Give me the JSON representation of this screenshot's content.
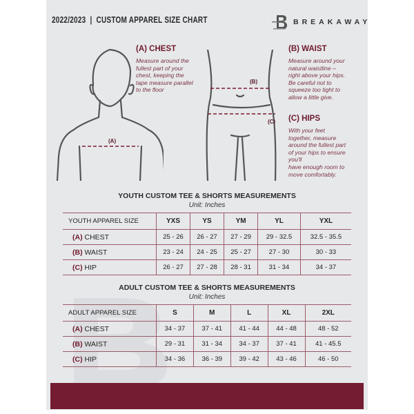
{
  "header": {
    "title": "2022/2023  |  CUSTOM APPAREL SIZE CHART",
    "brand": "BREAKAWAY",
    "logo_letter": "B"
  },
  "measure": {
    "chest": {
      "heading": "(A) CHEST",
      "lines": [
        "Measure around the",
        "fullest part of your",
        "chest, keeping the",
        "tape measure parallel",
        "to the floor"
      ],
      "tag": "(A)"
    },
    "waist": {
      "heading": "(B) WAIST",
      "lines": [
        "Measure around your",
        "natural waistline –",
        "right above your hips.",
        "Be careful not to",
        "squeeze too tight to",
        "allow a little give."
      ],
      "tag": "(B)"
    },
    "hips": {
      "heading": "(C) HIPS",
      "lines": [
        "With your feet",
        "together, measure",
        "around the fullest part",
        "of your hips to ensure",
        "you'll",
        "have enough room to",
        "move comfortably."
      ],
      "tag": "(C)"
    }
  },
  "youth": {
    "title": "YOUTH CUSTOM TEE & SHORTS MEASUREMENTS",
    "unit": "Unit: Inches",
    "header": [
      "YOUTH APPAREL SIZE",
      "YXS",
      "YS",
      "YM",
      "YL",
      "YXL"
    ],
    "rows": [
      {
        "letter": "(A)",
        "label": "CHEST",
        "values": [
          "25 - 26",
          "26 - 27",
          "27 - 29",
          "29 - 32.5",
          "32.5 - 35.5"
        ]
      },
      {
        "letter": "(B)",
        "label": "WAIST",
        "values": [
          "23 - 24",
          "24 - 25",
          "25 - 27",
          "27 - 30",
          "30 - 33"
        ]
      },
      {
        "letter": "(C)",
        "label": "HIP",
        "values": [
          "26 - 27",
          "27 - 28",
          "28 - 31",
          "31 - 34",
          "34 - 37"
        ]
      }
    ]
  },
  "adult": {
    "title": "ADULT CUSTOM TEE & SHORTS MEASUREMENTS",
    "unit": "Unit: Inches",
    "header": [
      "ADULT APPAREL SIZE",
      "S",
      "M",
      "L",
      "XL",
      "2XL"
    ],
    "rows": [
      {
        "letter": "(A)",
        "label": "CHEST",
        "values": [
          "34 - 37",
          "37 - 41",
          "41 - 44",
          "44 - 48",
          "48 - 52"
        ]
      },
      {
        "letter": "(B)",
        "label": "WAIST",
        "values": [
          "29 - 31",
          "31 - 34",
          "34 - 37",
          "37 - 41",
          "41 - 45.5"
        ]
      },
      {
        "letter": "(C)",
        "label": "HIP",
        "values": [
          "34 - 36",
          "36 - 39",
          "39 - 42",
          "43 - 46",
          "46 - 50"
        ]
      }
    ]
  },
  "colors": {
    "accent": "#741c32",
    "background": "#e7e8ea",
    "text": "#2a2a2a"
  }
}
